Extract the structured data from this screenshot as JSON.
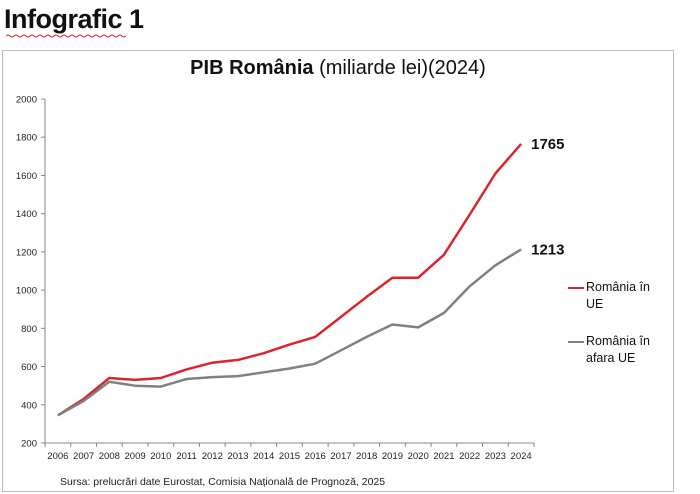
{
  "heading": "Infografic 1",
  "chart_data": {
    "type": "line",
    "title_bold": "PIB România",
    "title_rest": " (miliarde lei)(2024)",
    "categories": [
      "2006",
      "2007",
      "2008",
      "2009",
      "2010",
      "2011",
      "2012",
      "2013",
      "2014",
      "2015",
      "2016",
      "2017",
      "2018",
      "2019",
      "2020",
      "2021",
      "2022",
      "2023",
      "2024"
    ],
    "ylim": [
      200,
      2000
    ],
    "yticks": [
      "200",
      "400",
      "600",
      "800",
      "1000",
      "1200",
      "1400",
      "1600",
      "1800",
      "2000"
    ],
    "grid": false,
    "legend_position": "right",
    "series": [
      {
        "name_lines": [
          "România în",
          "UE"
        ],
        "color": "#d9262b",
        "values": [
          345,
          430,
          540,
          530,
          540,
          585,
          620,
          635,
          670,
          715,
          755,
          860,
          965,
          1065,
          1065,
          1185,
          1395,
          1610,
          1765
        ],
        "end_label": "1765"
      },
      {
        "name_lines": [
          "România în",
          "afara UE"
        ],
        "color": "#808080",
        "values": [
          345,
          420,
          520,
          500,
          495,
          535,
          545,
          550,
          570,
          590,
          615,
          685,
          755,
          820,
          805,
          880,
          1020,
          1130,
          1213
        ],
        "end_label": "1213"
      }
    ]
  },
  "source": "Sursa: prelucrări date Eurostat, Comisia Națională de Prognoză, 2025"
}
